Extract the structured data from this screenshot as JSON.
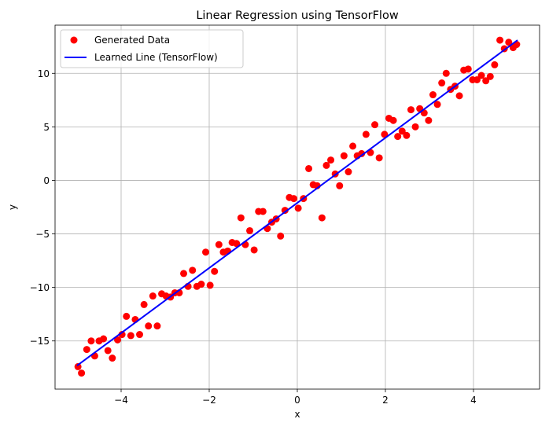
{
  "chart_data": {
    "type": "scatter",
    "title": "Linear Regression using TensorFlow",
    "xlabel": "x",
    "ylabel": "y",
    "xlim": [
      -5.5,
      5.5
    ],
    "ylim": [
      -19.5,
      14.5
    ],
    "xticks": [
      -4,
      -2,
      0,
      2,
      4
    ],
    "yticks": [
      -15,
      -10,
      -5,
      0,
      5,
      10
    ],
    "xtick_labels": [
      "−4",
      "−2",
      "0",
      "2",
      "4"
    ],
    "ytick_labels": [
      "−15",
      "−10",
      "−5",
      "0",
      "5",
      "10"
    ],
    "grid": true,
    "legend_position": "top-left",
    "colors": {
      "scatter": "#ff0000",
      "line": "#0000ff",
      "grid": "#b0b0b0",
      "legend_border": "#cccccc"
    },
    "series": [
      {
        "name": "Generated Data",
        "kind": "scatter",
        "points": [
          [
            -4.98,
            -17.4
          ],
          [
            -4.9,
            -18.0
          ],
          [
            -4.78,
            -15.8
          ],
          [
            -4.68,
            -15.0
          ],
          [
            -4.6,
            -16.4
          ],
          [
            -4.5,
            -15.0
          ],
          [
            -4.4,
            -14.8
          ],
          [
            -4.3,
            -15.9
          ],
          [
            -4.2,
            -16.6
          ],
          [
            -4.08,
            -14.9
          ],
          [
            -3.98,
            -14.4
          ],
          [
            -3.88,
            -12.7
          ],
          [
            -3.78,
            -14.5
          ],
          [
            -3.68,
            -13.0
          ],
          [
            -3.58,
            -14.4
          ],
          [
            -3.48,
            -11.6
          ],
          [
            -3.38,
            -13.6
          ],
          [
            -3.28,
            -10.8
          ],
          [
            -3.18,
            -13.6
          ],
          [
            -3.08,
            -10.6
          ],
          [
            -2.98,
            -10.8
          ],
          [
            -2.88,
            -10.9
          ],
          [
            -2.78,
            -10.5
          ],
          [
            -2.68,
            -10.5
          ],
          [
            -2.58,
            -8.7
          ],
          [
            -2.48,
            -9.9
          ],
          [
            -2.38,
            -8.4
          ],
          [
            -2.28,
            -9.9
          ],
          [
            -2.18,
            -9.7
          ],
          [
            -2.08,
            -6.7
          ],
          [
            -1.98,
            -9.8
          ],
          [
            -1.88,
            -8.5
          ],
          [
            -1.78,
            -6.0
          ],
          [
            -1.68,
            -6.7
          ],
          [
            -1.58,
            -6.6
          ],
          [
            -1.48,
            -5.8
          ],
          [
            -1.38,
            -5.9
          ],
          [
            -1.28,
            -3.5
          ],
          [
            -1.18,
            -6.0
          ],
          [
            -1.08,
            -4.7
          ],
          [
            -0.98,
            -6.5
          ],
          [
            -0.88,
            -2.9
          ],
          [
            -0.78,
            -2.9
          ],
          [
            -0.68,
            -4.5
          ],
          [
            -0.58,
            -3.9
          ],
          [
            -0.48,
            -3.6
          ],
          [
            -0.38,
            -5.2
          ],
          [
            -0.28,
            -2.8
          ],
          [
            -0.18,
            -1.6
          ],
          [
            -0.08,
            -1.7
          ],
          [
            0.02,
            -2.6
          ],
          [
            0.14,
            -1.7
          ],
          [
            0.26,
            1.1
          ],
          [
            0.36,
            -0.4
          ],
          [
            0.45,
            -0.5
          ],
          [
            0.56,
            -3.5
          ],
          [
            0.66,
            1.4
          ],
          [
            0.76,
            1.9
          ],
          [
            0.86,
            0.6
          ],
          [
            0.96,
            -0.5
          ],
          [
            1.06,
            2.3
          ],
          [
            1.16,
            0.8
          ],
          [
            1.26,
            3.2
          ],
          [
            1.36,
            2.3
          ],
          [
            1.46,
            2.5
          ],
          [
            1.56,
            4.3
          ],
          [
            1.66,
            2.6
          ],
          [
            1.76,
            5.2
          ],
          [
            1.86,
            2.1
          ],
          [
            1.98,
            4.3
          ],
          [
            2.08,
            5.8
          ],
          [
            2.18,
            5.6
          ],
          [
            2.28,
            4.1
          ],
          [
            2.38,
            4.6
          ],
          [
            2.48,
            4.2
          ],
          [
            2.58,
            6.6
          ],
          [
            2.68,
            5.0
          ],
          [
            2.78,
            6.7
          ],
          [
            2.88,
            6.3
          ],
          [
            2.98,
            5.6
          ],
          [
            3.08,
            8.0
          ],
          [
            3.18,
            7.1
          ],
          [
            3.28,
            9.1
          ],
          [
            3.38,
            10.0
          ],
          [
            3.48,
            8.5
          ],
          [
            3.58,
            8.8
          ],
          [
            3.68,
            7.9
          ],
          [
            3.78,
            10.3
          ],
          [
            3.88,
            10.4
          ],
          [
            3.98,
            9.4
          ],
          [
            4.08,
            9.4
          ],
          [
            4.18,
            9.8
          ],
          [
            4.28,
            9.3
          ],
          [
            4.38,
            9.7
          ],
          [
            4.48,
            10.8
          ],
          [
            4.6,
            13.1
          ],
          [
            4.7,
            12.3
          ],
          [
            4.8,
            12.9
          ],
          [
            4.9,
            12.4
          ],
          [
            4.98,
            12.7
          ]
        ]
      },
      {
        "name": "Learned Line (TensorFlow)",
        "kind": "line",
        "points": [
          [
            -5.0,
            -17.3
          ],
          [
            5.0,
            13.1
          ]
        ]
      }
    ]
  }
}
